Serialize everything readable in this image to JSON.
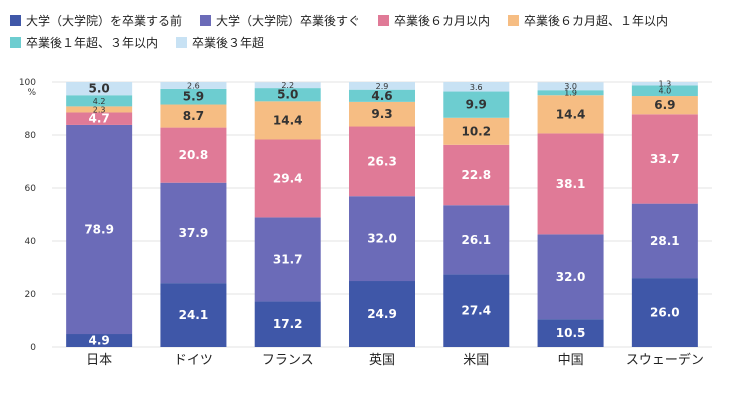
{
  "chart_data": {
    "type": "bar",
    "stacked": true,
    "categories": [
      "日本",
      "ドイツ",
      "フランス",
      "英国",
      "米国",
      "中国",
      "スウェーデン"
    ],
    "series": [
      {
        "name": "大学（大学院）を卒業する前",
        "color": "#3f57a8",
        "values": [
          4.9,
          24.1,
          17.2,
          24.9,
          27.4,
          10.5,
          26.0
        ]
      },
      {
        "name": "大学（大学院）卒業後すぐ",
        "color": "#6b6bb8",
        "values": [
          78.9,
          37.9,
          31.7,
          32.0,
          26.1,
          32.0,
          28.1
        ]
      },
      {
        "name": "卒業後６カ月以内",
        "color": "#e07a97",
        "values": [
          4.7,
          20.8,
          29.4,
          26.3,
          22.8,
          38.1,
          33.7
        ]
      },
      {
        "name": "卒業後６カ月超、１年以内",
        "color": "#f6bd83",
        "values": [
          2.3,
          8.7,
          14.4,
          9.3,
          10.2,
          14.4,
          6.9
        ]
      },
      {
        "name": "卒業後１年超、３年以内",
        "color": "#6dcdd0",
        "values": [
          4.2,
          5.9,
          5.0,
          4.6,
          9.9,
          1.9,
          4.0
        ]
      },
      {
        "name": "卒業後３年超",
        "color": "#c8e2f4",
        "values": [
          5.0,
          2.6,
          2.2,
          2.9,
          3.6,
          3.0,
          1.3
        ]
      }
    ],
    "value_labels": [
      [
        "4.9",
        "24.1",
        "17.2",
        "24.9",
        "27.4",
        "10.5",
        "26.0"
      ],
      [
        "78.9",
        "37.9",
        "31.7",
        "32.0",
        "26.1",
        "32.0",
        "28.1"
      ],
      [
        "4.7",
        "20.8",
        "29.4",
        "26.3",
        "22.8",
        "38.1",
        "33.7"
      ],
      [
        "2.3",
        "8.7",
        "14.4",
        "9.3",
        "10.2",
        "14.4",
        "6.9"
      ],
      [
        "4.2",
        "5.9",
        "5.0",
        "4.6",
        "9.9",
        "1.9",
        "4.0"
      ],
      [
        "5.0",
        "2.6",
        "2.2",
        "2.9",
        "3.6",
        "3.0",
        "1.3"
      ]
    ],
    "yticks": [
      0,
      20,
      40,
      60,
      80,
      100
    ],
    "ytick_labels": [
      "0",
      "20",
      "40",
      "60",
      "80",
      "100"
    ],
    "ylim": [
      0,
      100
    ],
    "yunit": "%",
    "legend": "top",
    "grid": true
  }
}
